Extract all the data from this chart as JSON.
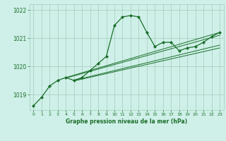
{
  "title": "Graphe pression niveau de la mer (hPa)",
  "bg_color": "#cff0e8",
  "grid_color": "#a0ccbb",
  "line_color": "#1a6e2a",
  "marker_color": "#1a6e2a",
  "xlim": [
    -0.5,
    23.5
  ],
  "ylim": [
    1018.45,
    1022.2
  ],
  "yticks": [
    1019,
    1020,
    1021,
    1022
  ],
  "xticks": [
    0,
    1,
    2,
    3,
    4,
    5,
    6,
    7,
    8,
    9,
    10,
    11,
    12,
    13,
    14,
    15,
    16,
    17,
    18,
    19,
    20,
    21,
    22,
    23
  ],
  "series": {
    "main": {
      "x": [
        0,
        1,
        2,
        3,
        4,
        5,
        6,
        7,
        8,
        9,
        10,
        11,
        12,
        13,
        14,
        15,
        16,
        17,
        18,
        19,
        20,
        21,
        22,
        23
      ],
      "y": [
        1018.6,
        1018.9,
        1019.3,
        1019.5,
        1019.6,
        1019.5,
        1019.6,
        1019.85,
        1020.1,
        1020.35,
        1021.45,
        1021.75,
        1021.8,
        1021.75,
        1021.2,
        1020.7,
        1020.85,
        1020.85,
        1020.55,
        1020.65,
        1020.7,
        1020.85,
        1021.05,
        1021.2
      ]
    },
    "line1": {
      "x": [
        4,
        23
      ],
      "y": [
        1019.6,
        1021.2
      ]
    },
    "line2": {
      "x": [
        4,
        23
      ],
      "y": [
        1019.58,
        1021.1
      ]
    },
    "line3": {
      "x": [
        5,
        23
      ],
      "y": [
        1019.5,
        1020.75
      ]
    },
    "line4": {
      "x": [
        5,
        23
      ],
      "y": [
        1019.48,
        1020.65
      ]
    }
  }
}
